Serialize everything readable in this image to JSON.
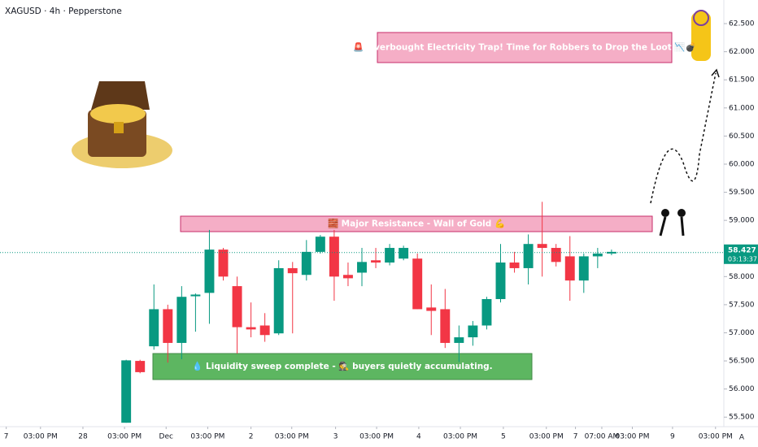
{
  "chart_data": {
    "type": "candlestick",
    "title": "XAGUSD · 4h · Pepperstone",
    "up_color": "#089981",
    "down_color": "#f23645",
    "open": [
      55.4,
      56.5,
      56.76,
      57.42,
      56.82,
      57.65,
      57.71,
      58.48,
      57.83,
      57.1,
      57.13,
      56.99,
      58.15,
      58.03,
      58.44,
      58.71,
      58.03,
      58.07,
      58.29,
      58.25,
      58.32,
      58.32,
      57.45,
      57.42,
      56.82,
      56.92,
      57.13,
      57.6,
      58.25,
      58.15,
      58.58,
      58.51,
      58.36,
      57.93,
      58.36,
      58.41
    ],
    "high": [
      56.52,
      56.52,
      57.86,
      57.5,
      57.83,
      57.7,
      58.83,
      58.51,
      58.0,
      57.54,
      57.35,
      58.29,
      58.26,
      58.65,
      58.74,
      58.83,
      58.25,
      58.51,
      58.51,
      58.58,
      58.55,
      58.41,
      57.86,
      57.78,
      57.13,
      57.21,
      57.64,
      58.58,
      58.44,
      58.75,
      59.33,
      58.58,
      58.72,
      58.41,
      58.51,
      58.48
    ],
    "low": [
      55.4,
      56.28,
      56.7,
      56.47,
      56.53,
      57.02,
      57.16,
      57.93,
      56.63,
      56.92,
      56.84,
      56.96,
      56.99,
      57.93,
      58.41,
      57.57,
      57.83,
      57.83,
      58.15,
      58.2,
      58.29,
      57.42,
      56.96,
      56.73,
      56.48,
      56.77,
      57.06,
      57.54,
      58.07,
      57.86,
      58.0,
      58.18,
      57.57,
      57.71,
      58.15,
      58.38
    ],
    "close": [
      56.51,
      56.3,
      57.42,
      56.82,
      57.64,
      57.68,
      58.48,
      58.0,
      57.1,
      57.06,
      56.96,
      58.15,
      58.06,
      58.44,
      58.71,
      58.0,
      57.97,
      58.26,
      58.25,
      58.51,
      58.51,
      57.42,
      57.39,
      56.82,
      56.92,
      57.13,
      57.6,
      58.25,
      58.15,
      58.58,
      58.51,
      58.26,
      57.93,
      58.36,
      58.41,
      58.44
    ],
    "xlim": [
      -9.1,
      43.1
    ],
    "xticks": [
      {
        "value": -8.65,
        "label": "7"
      },
      {
        "value": -6.18,
        "label": "03:00 PM"
      },
      {
        "value": -3.12,
        "label": "28"
      },
      {
        "value": -0.12,
        "label": "03:00 PM"
      },
      {
        "value": 2.88,
        "label": "Dec"
      },
      {
        "value": 5.88,
        "label": "03:00 PM"
      },
      {
        "value": 9.0,
        "label": "2"
      },
      {
        "value": 11.94,
        "label": "03:00 PM"
      },
      {
        "value": 15.1,
        "label": "3"
      },
      {
        "value": 18.06,
        "label": "03:00 PM"
      },
      {
        "value": 21.1,
        "label": "4"
      },
      {
        "value": 24.1,
        "label": "03:00 PM"
      },
      {
        "value": 27.2,
        "label": "5"
      },
      {
        "value": 30.3,
        "label": "03:00 PM"
      },
      {
        "value": 32.4,
        "label": "7"
      },
      {
        "value": 34.3,
        "label": "07:00 AM"
      },
      {
        "value": 36.5,
        "label": "03:00 PM"
      },
      {
        "value": 39.4,
        "label": "9"
      },
      {
        "value": 42.5,
        "label": "03:00 PM"
      }
    ],
    "ylim": [
      55.33,
      62.92
    ],
    "yticks": [
      {
        "value": 55.5,
        "label": "55.500"
      },
      {
        "value": 56,
        "label": "56.000"
      },
      {
        "value": 56.5,
        "label": "56.500"
      },
      {
        "value": 57,
        "label": "57.000"
      },
      {
        "value": 57.5,
        "label": "57.500"
      },
      {
        "value": 58,
        "label": "58.000"
      },
      {
        "value": 58.5,
        "label": "58.500"
      },
      {
        "value": 59,
        "label": "59.000"
      },
      {
        "value": 59.5,
        "label": "59.500"
      },
      {
        "value": 60,
        "label": "60.000"
      },
      {
        "value": 60.5,
        "label": "60.500"
      },
      {
        "value": 61,
        "label": "61.000"
      },
      {
        "value": 61.5,
        "label": "61.500"
      },
      {
        "value": 62,
        "label": "62.000"
      },
      {
        "value": 62.5,
        "label": "62.500"
      }
    ],
    "last_price": 58.427,
    "countdown": "03:13:37",
    "annotations": [
      "🚨 Overbought Electricity Trap! Time for Robbers to Drop the Loot 📉💣",
      "🧱 Major Resistance - Wall of Gold 💪",
      "💧 Liquidity sweep complete - 🕵️ buyers quietly accumulating."
    ],
    "corner_button": "A"
  }
}
